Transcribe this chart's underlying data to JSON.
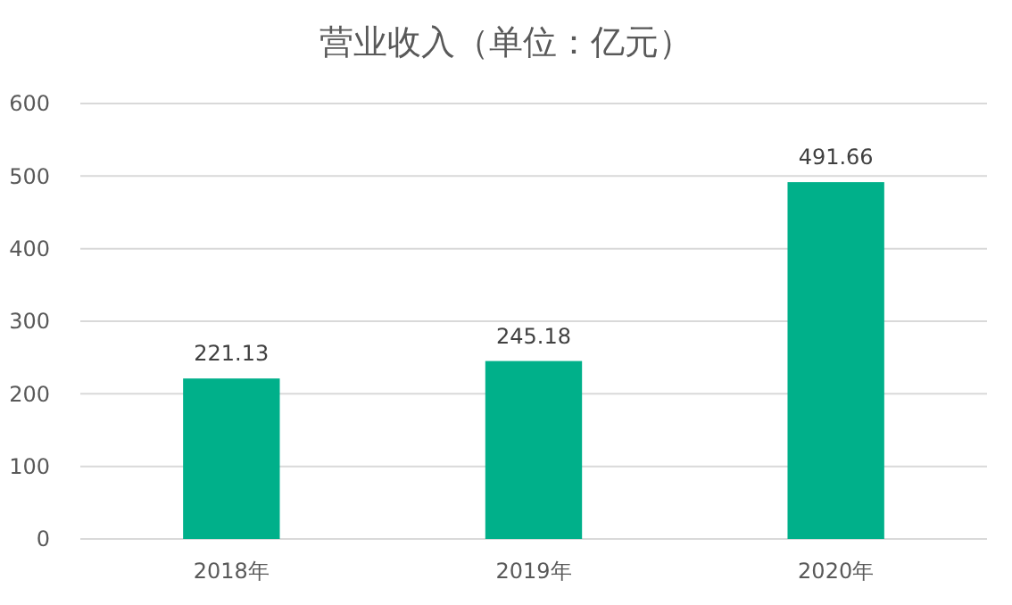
{
  "chart_data": {
    "type": "bar",
    "title": "营业收入（单位：亿元）",
    "categories": [
      "2018年",
      "2019年",
      "2020年"
    ],
    "values": [
      221.13,
      245.18,
      491.66
    ],
    "color": "#00b08a",
    "ylim": [
      0,
      600
    ],
    "yticks": [
      0,
      100,
      200,
      300,
      400,
      500,
      600
    ],
    "grid": "y",
    "data_labels": true
  }
}
